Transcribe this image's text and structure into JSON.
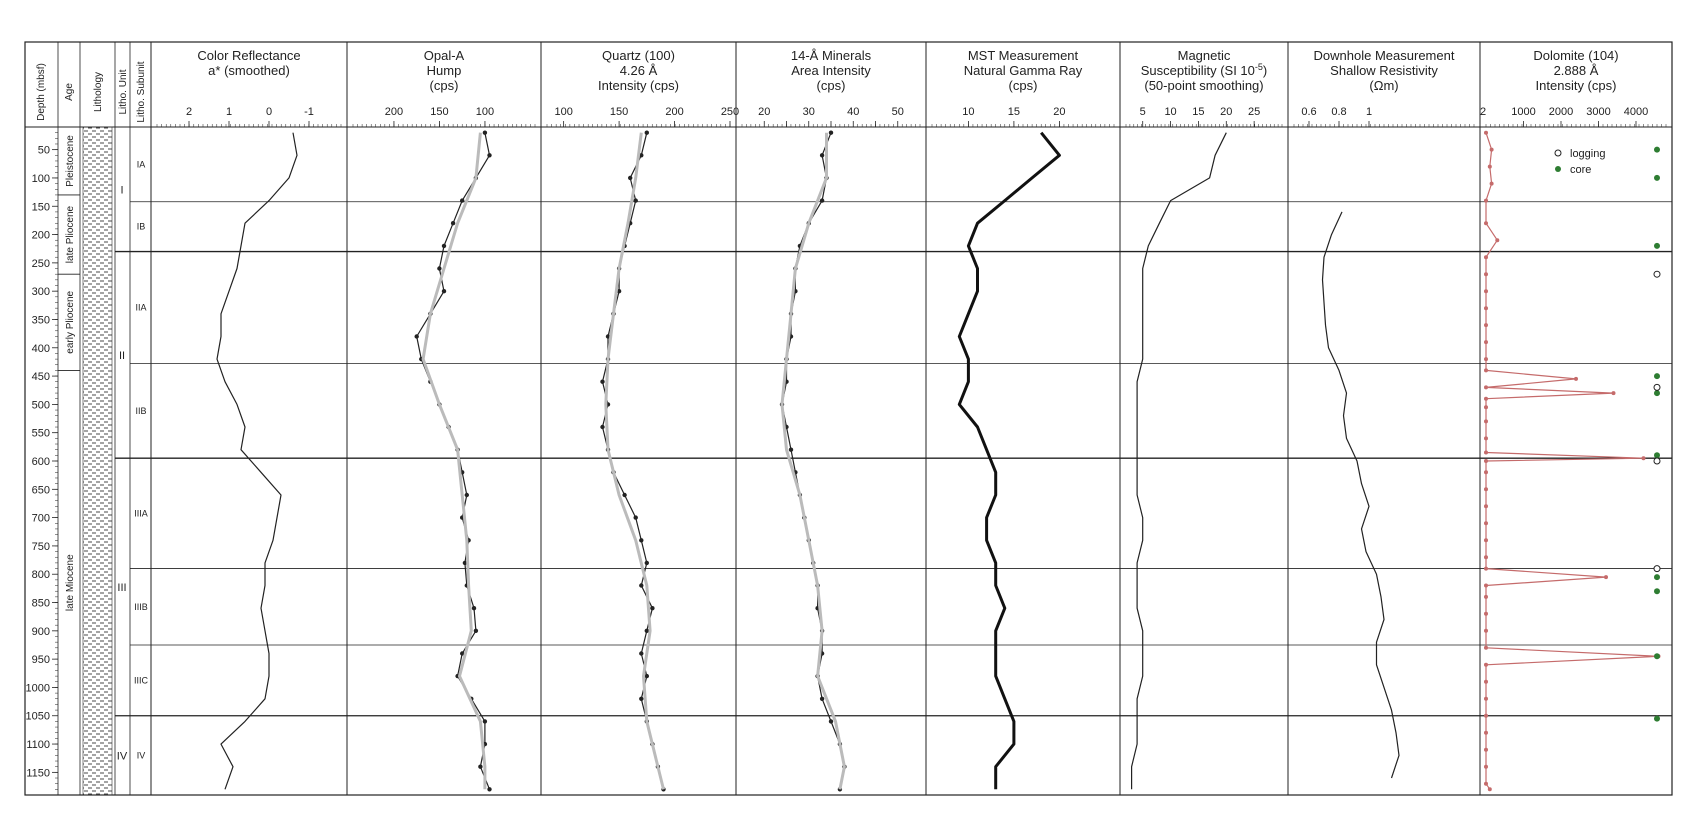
{
  "chart_data": {
    "type": "line",
    "depth_axis": {
      "label": "Depth (mbsf)",
      "range": [
        10,
        1190
      ],
      "ticks": [
        50,
        100,
        150,
        200,
        250,
        300,
        350,
        400,
        450,
        500,
        550,
        600,
        650,
        700,
        750,
        800,
        850,
        900,
        950,
        1000,
        1050,
        1100,
        1150
      ]
    },
    "column_headers": {
      "depth": "Depth (mbsf)",
      "age": "Age",
      "lithology": "Lithology",
      "unit": "Litho. Unit",
      "subunit": "Litho. Subunit"
    },
    "ages": [
      {
        "label": "Pleistocene",
        "top": 10,
        "bottom": 130
      },
      {
        "label": "late Pliocene",
        "top": 130,
        "bottom": 270
      },
      {
        "label": "early Pliocene",
        "top": 270,
        "bottom": 440
      },
      {
        "label": "late Miocene",
        "top": 440,
        "bottom": 1190
      }
    ],
    "units": [
      {
        "label": "I",
        "top": 10,
        "bottom": 230
      },
      {
        "label": "II",
        "top": 230,
        "bottom": 595
      },
      {
        "label": "III",
        "top": 595,
        "bottom": 1050
      },
      {
        "label": "IV",
        "top": 1050,
        "bottom": 1190
      }
    ],
    "subunits": [
      {
        "label": "IA",
        "top": 10,
        "bottom": 142
      },
      {
        "label": "IB",
        "top": 142,
        "bottom": 230
      },
      {
        "label": "IIA",
        "top": 230,
        "bottom": 428
      },
      {
        "label": "IIB",
        "top": 428,
        "bottom": 595
      },
      {
        "label": "IIIA",
        "top": 595,
        "bottom": 790
      },
      {
        "label": "IIIB",
        "top": 790,
        "bottom": 925
      },
      {
        "label": "IIIC",
        "top": 925,
        "bottom": 1050
      },
      {
        "label": "IV",
        "top": 1050,
        "bottom": 1190
      }
    ],
    "panels": [
      {
        "id": "color",
        "title": [
          "Color Reflectance",
          "a* (smoothed)"
        ],
        "xlim": [
          2.8,
          -1.8
        ],
        "ticks": [
          2,
          1,
          0,
          -1
        ],
        "tick_labels": [
          "2",
          "1",
          "0",
          "-1"
        ],
        "series": [
          {
            "depth": [
              20,
              60,
              100,
              140,
              180,
              220,
              260,
              300,
              340,
              380,
              420,
              460,
              500,
              540,
              580,
              620,
              660,
              700,
              740,
              780,
              820,
              860,
              900,
              940,
              980,
              1020,
              1060,
              1100,
              1140,
              1180
            ],
            "values": [
              -0.6,
              -0.7,
              -0.5,
              0.0,
              0.6,
              0.7,
              0.8,
              1.0,
              1.2,
              1.2,
              1.3,
              1.1,
              0.8,
              0.6,
              0.7,
              0.2,
              -0.3,
              -0.2,
              -0.1,
              0.1,
              0.1,
              0.2,
              0.1,
              0.0,
              0.0,
              0.1,
              0.6,
              1.2,
              0.9,
              1.1
            ]
          }
        ]
      },
      {
        "id": "opal",
        "title": [
          "Opal-A",
          "Hump",
          "(cps)"
        ],
        "xlim": [
          245,
          45
        ],
        "ticks": [
          200,
          150,
          100
        ],
        "tick_labels": [
          "200",
          "150",
          "100"
        ],
        "series": [
          {
            "name": "data",
            "depth": [
              20,
              60,
              100,
              140,
              180,
              220,
              260,
              300,
              340,
              380,
              420,
              460,
              500,
              540,
              580,
              620,
              660,
              700,
              740,
              780,
              820,
              860,
              900,
              940,
              980,
              1020,
              1060,
              1100,
              1140,
              1180
            ],
            "values": [
              100,
              95,
              110,
              125,
              135,
              145,
              150,
              145,
              160,
              175,
              170,
              160,
              150,
              140,
              130,
              125,
              120,
              125,
              118,
              122,
              120,
              112,
              110,
              125,
              130,
              115,
              100,
              100,
              105,
              95
            ]
          },
          {
            "name": "smoothed",
            "depth": [
              20,
              100,
              180,
              260,
              340,
              420,
              500,
              580,
              660,
              740,
              820,
              900,
              980,
              1060,
              1140,
              1180
            ],
            "values": [
              105,
              110,
              130,
              145,
              160,
              168,
              150,
              130,
              125,
              120,
              118,
              115,
              128,
              105,
              100,
              100
            ]
          }
        ]
      },
      {
        "id": "quartz",
        "title": [
          "Quartz (100)",
          "4.26 Å",
          "Intensity (cps)"
        ],
        "xlim": [
          85,
          250
        ],
        "ticks": [
          100,
          150,
          200,
          250
        ],
        "tick_labels": [
          "100",
          "150",
          "200",
          "250"
        ],
        "series": [
          {
            "name": "data",
            "depth": [
              20,
              60,
              100,
              140,
              180,
              220,
              260,
              300,
              340,
              380,
              420,
              460,
              500,
              540,
              580,
              620,
              660,
              700,
              740,
              780,
              820,
              860,
              900,
              940,
              980,
              1020,
              1060,
              1100,
              1140,
              1180
            ],
            "values": [
              175,
              170,
              160,
              165,
              160,
              155,
              150,
              150,
              145,
              140,
              140,
              135,
              140,
              135,
              140,
              145,
              155,
              165,
              170,
              175,
              170,
              180,
              175,
              170,
              175,
              170,
              175,
              180,
              185,
              190
            ]
          },
          {
            "name": "smoothed",
            "depth": [
              20,
              100,
              180,
              260,
              340,
              420,
              500,
              580,
              660,
              740,
              820,
              900,
              980,
              1060,
              1140,
              1180
            ],
            "values": [
              170,
              165,
              158,
              150,
              145,
              140,
              138,
              140,
              150,
              165,
              175,
              178,
              172,
              175,
              185,
              190
            ]
          }
        ]
      },
      {
        "id": "minerals",
        "title": [
          "14-Å Minerals",
          "Area Intensity",
          "(cps)"
        ],
        "xlim": [
          15,
          55
        ],
        "ticks": [
          20,
          25,
          30,
          35,
          40,
          45,
          50
        ],
        "tick_labels": [
          "20",
          "",
          "30",
          "",
          "40",
          "",
          "50"
        ],
        "series": [
          {
            "name": "data",
            "depth": [
              20,
              60,
              100,
              140,
              180,
              220,
              260,
              300,
              340,
              380,
              420,
              460,
              500,
              540,
              580,
              620,
              660,
              700,
              740,
              780,
              820,
              860,
              900,
              940,
              980,
              1020,
              1060,
              1100,
              1140,
              1180
            ],
            "values": [
              35,
              33,
              34,
              33,
              30,
              28,
              27,
              27,
              26,
              26,
              25,
              25,
              24,
              25,
              26,
              27,
              28,
              29,
              30,
              31,
              32,
              32,
              33,
              33,
              32,
              33,
              35,
              37,
              38,
              37
            ]
          },
          {
            "name": "smoothed",
            "depth": [
              20,
              100,
              180,
              260,
              340,
              420,
              500,
              580,
              660,
              740,
              820,
              900,
              980,
              1060,
              1140,
              1180
            ],
            "values": [
              34,
              34,
              30,
              27,
              26,
              25,
              24,
              25,
              28,
              30,
              32,
              33,
              32,
              36,
              38,
              37
            ]
          }
        ]
      },
      {
        "id": "gamma",
        "title": [
          "MST Measurement",
          "Natural Gamma Ray",
          "(cps)"
        ],
        "xlim": [
          6,
          26
        ],
        "ticks": [
          10,
          15,
          20
        ],
        "tick_labels": [
          "10",
          "15",
          "20"
        ],
        "series": [
          {
            "name": "smoothed",
            "depth": [
              20,
              60,
              100,
              140,
              180,
              220,
              260,
              300,
              340,
              380,
              420,
              460,
              500,
              540,
              580,
              620,
              660,
              700,
              740,
              780,
              820,
              860,
              900,
              940,
              980,
              1020,
              1060,
              1100,
              1140,
              1180
            ],
            "values": [
              18,
              20,
              17,
              14,
              11,
              10,
              11,
              11,
              10,
              9,
              10,
              10,
              9,
              11,
              12,
              13,
              13,
              12,
              12,
              13,
              13,
              14,
              13,
              13,
              13,
              14,
              15,
              15,
              13,
              13
            ]
          }
        ]
      },
      {
        "id": "magsus",
        "title": [
          "Magnetic",
          "Susceptibility (SI 10",
          "(50-point smoothing)"
        ],
        "title_sup": "-5",
        "title_tail": ")",
        "xlim": [
          2,
          30
        ],
        "ticks": [
          5,
          10,
          15,
          20,
          25
        ],
        "tick_labels": [
          "5",
          "10",
          "15",
          "20",
          "25"
        ],
        "series": [
          {
            "name": "data",
            "depth": [
              20,
              60,
              100,
              140,
              180,
              220,
              260,
              300,
              340,
              380,
              420,
              460,
              500,
              540,
              580,
              620,
              660,
              700,
              740,
              780,
              820,
              860,
              900,
              940,
              980,
              1020,
              1060,
              1100,
              1140,
              1180
            ],
            "values": [
              20,
              18,
              17,
              10,
              8,
              6,
              5,
              5,
              5,
              5,
              5,
              4,
              4,
              4,
              4,
              4,
              4,
              5,
              5,
              4,
              4,
              4,
              5,
              5,
              5,
              4,
              4,
              4,
              3,
              3
            ]
          }
        ]
      },
      {
        "id": "resistivity",
        "title": [
          "Downhole Measurement",
          "Shallow Resistivity",
          "(Ωm)"
        ],
        "xlim": [
          0.5,
          1.7
        ],
        "ticks": [
          0.6,
          0.8,
          1.0
        ],
        "tick_labels": [
          "0.6",
          "0.8",
          "1"
        ],
        "series": [
          {
            "name": "data",
            "depth": [
              160,
              200,
              240,
              280,
              320,
              360,
              400,
              440,
              480,
              520,
              560,
              600,
              640,
              680,
              720,
              760,
              800,
              840,
              880,
              920,
              960,
              1000,
              1040,
              1080,
              1120,
              1160
            ],
            "values": [
              0.82,
              0.75,
              0.7,
              0.69,
              0.7,
              0.71,
              0.73,
              0.8,
              0.85,
              0.83,
              0.85,
              0.92,
              0.95,
              1.0,
              0.95,
              0.98,
              1.05,
              1.08,
              1.1,
              1.05,
              1.05,
              1.1,
              1.15,
              1.18,
              1.2,
              1.15
            ]
          }
        ]
      },
      {
        "id": "dolomite",
        "title": [
          "Dolomite (104)",
          "2.888 Å",
          "Intensity (cps)"
        ],
        "xlim": [
          0,
          4800
        ],
        "ticks": [
          1000,
          2000,
          3000,
          4000
        ],
        "tick_labels": [
          "1000",
          "2000",
          "3000",
          "4000"
        ],
        "zero_label": "2",
        "legend": [
          {
            "label": "logging",
            "marker": "open-circle"
          },
          {
            "label": "core",
            "marker": "filled-circle"
          }
        ],
        "series": [
          {
            "name": "core",
            "color": "#c56b6b",
            "depth": [
              20,
              50,
              80,
              110,
              140,
              180,
              210,
              240,
              270,
              300,
              330,
              360,
              390,
              420,
              440,
              455,
              470,
              480,
              490,
              505,
              530,
              560,
              585,
              595,
              600,
              620,
              650,
              680,
              710,
              740,
              770,
              790,
              805,
              820,
              840,
              870,
              900,
              930,
              945,
              960,
              990,
              1020,
              1050,
              1080,
              1110,
              1140,
              1170,
              1180
            ],
            "values": [
              0,
              150,
              100,
              150,
              0,
              0,
              300,
              0,
              0,
              0,
              0,
              0,
              0,
              0,
              0,
              2400,
              0,
              3400,
              0,
              0,
              0,
              0,
              0,
              4200,
              0,
              0,
              0,
              0,
              0,
              0,
              0,
              0,
              3200,
              0,
              0,
              0,
              0,
              0,
              4600,
              0,
              0,
              0,
              0,
              0,
              0,
              0,
              0,
              100
            ]
          }
        ],
        "markers": {
          "filled": [
            50,
            100,
            220,
            450,
            480,
            590,
            805,
            830,
            945,
            1055
          ],
          "open": [
            270,
            470,
            600,
            790
          ]
        }
      }
    ]
  }
}
